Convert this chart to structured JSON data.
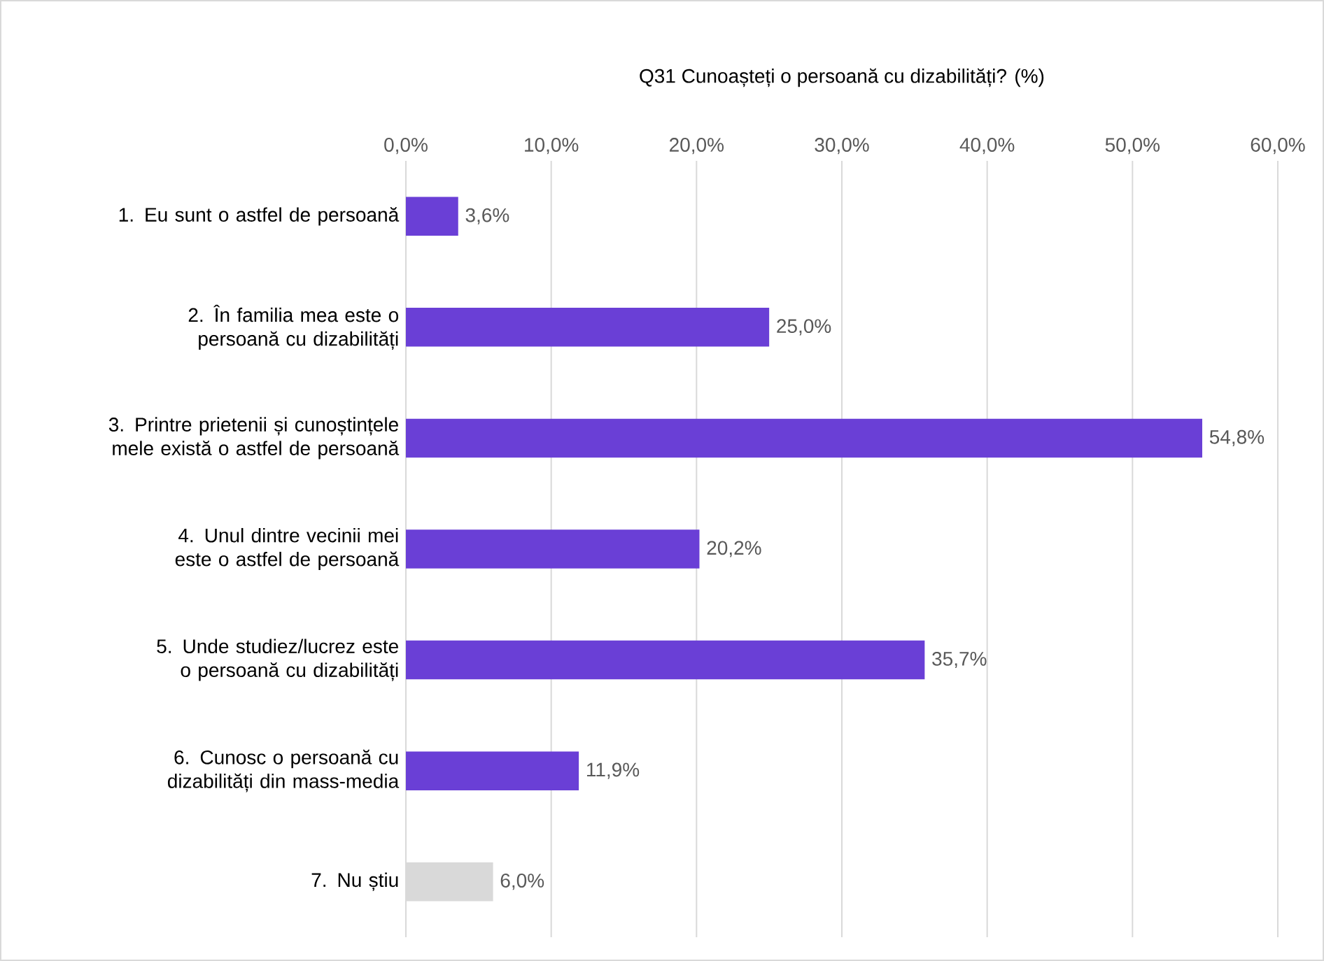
{
  "chart_data": {
    "type": "bar",
    "orientation": "horizontal",
    "title": "Q31 Cunoașteți o persoană cu dizabilități? (%)",
    "categories": [
      "1. Eu sunt o astfel de persoană",
      "2. În familia mea este o persoană cu dizabilități",
      "3. Printre prietenii și cunoștințele mele există o astfel de persoană",
      "4. Unul dintre vecinii mei este o astfel de persoană",
      "5. Unde studiez/lucrez este o persoană cu dizabilități",
      "6. Cunosc o persoană cu dizabilități din mass-media",
      "7. Nu știu"
    ],
    "values": [
      3.6,
      25.0,
      54.8,
      20.2,
      35.7,
      11.9,
      6.0
    ],
    "value_labels": [
      "3,6%",
      "25,0%",
      "54,8%",
      "20,2%",
      "35,7%",
      "11,9%",
      "6,0%"
    ],
    "colors": [
      "#6a3fd6",
      "#6a3fd6",
      "#6a3fd6",
      "#6a3fd6",
      "#6a3fd6",
      "#6a3fd6",
      "#d9d9d9"
    ],
    "xlim": [
      0,
      60
    ],
    "xticks": [
      {
        "value": 0,
        "label": "0,0%"
      },
      {
        "value": 10,
        "label": "10,0%"
      },
      {
        "value": 20,
        "label": "20,0%"
      },
      {
        "value": 30,
        "label": "30,0%"
      },
      {
        "value": 40,
        "label": "40,0%"
      },
      {
        "value": 50,
        "label": "50,0%"
      },
      {
        "value": 60,
        "label": "60,0%"
      }
    ],
    "grid": "x"
  }
}
